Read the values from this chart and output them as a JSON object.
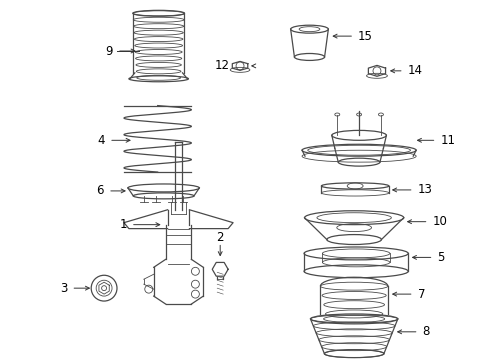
{
  "bg_color": "#ffffff",
  "line_color": "#4a4a4a",
  "label_color": "#000000",
  "figsize": [
    4.9,
    3.6
  ],
  "dpi": 100
}
